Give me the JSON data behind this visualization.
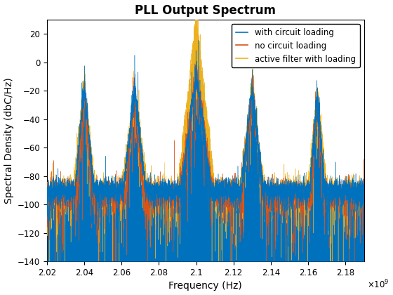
{
  "title": "PLL Output Spectrum",
  "xlabel": "Frequency (Hz)",
  "ylabel": "Spectral Density (dbC/Hz)",
  "xlim": [
    2020000000.0,
    2190000000.0
  ],
  "ylim": [
    -140,
    30
  ],
  "yticks": [
    -140,
    -120,
    -100,
    -80,
    -60,
    -40,
    -20,
    0,
    20
  ],
  "xtick_values": [
    2020000000.0,
    2040000000.0,
    2060000000.0,
    2080000000.0,
    2100000000.0,
    2120000000.0,
    2140000000.0,
    2160000000.0,
    2180000000.0
  ],
  "xtick_labels": [
    "2.02",
    "2.04",
    "2.06",
    "2.08",
    "2.1",
    "2.12",
    "2.14",
    "2.16",
    "2.18"
  ],
  "colors": {
    "blue": "#0072BD",
    "red": "#D95319",
    "yellow": "#EDB120"
  },
  "legend": [
    "with circuit loading",
    "no circuit loading",
    "active filter with loading"
  ],
  "noise_floor": -90,
  "seed": 42
}
